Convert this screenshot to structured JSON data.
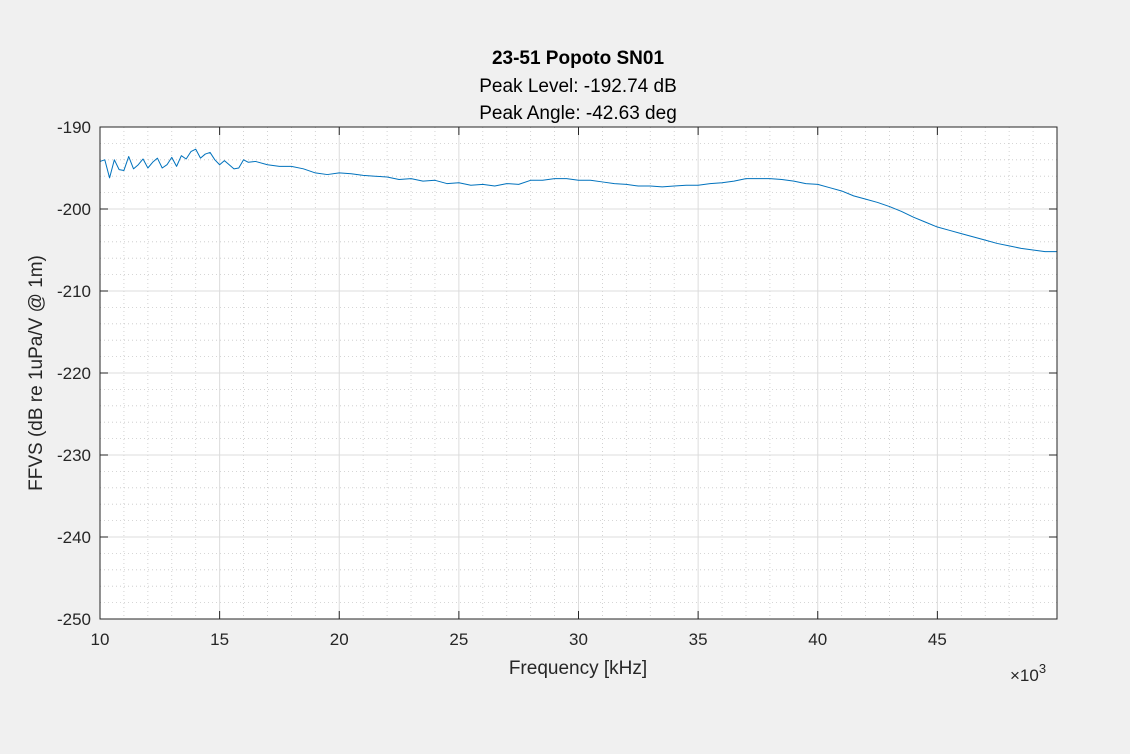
{
  "chart_data": {
    "type": "line",
    "title": "23-51 Popoto SN01",
    "subtitles": [
      "Peak Level: -192.74 dB",
      "Peak Angle: -42.63 deg"
    ],
    "xlabel": "Frequency [kHz]",
    "ylabel": "FFVS (dB re 1uPa/V @ 1m)",
    "x_exponent_label": "×10",
    "x_exponent_power": "3",
    "xlim": [
      10000,
      50000
    ],
    "ylim": [
      -250,
      -190
    ],
    "xticks": [
      10000,
      15000,
      20000,
      25000,
      30000,
      35000,
      40000,
      45000
    ],
    "xtick_labels": [
      "10",
      "15",
      "20",
      "25",
      "30",
      "35",
      "40",
      "45"
    ],
    "yticks": [
      -190,
      -200,
      -210,
      -220,
      -230,
      -240,
      -250
    ],
    "ytick_labels": [
      "-190",
      "-200",
      "-210",
      "-220",
      "-230",
      "-240",
      "-250"
    ],
    "grid": true,
    "minor_grid": true,
    "line_color": "#0072bd",
    "series": [
      {
        "x": [
          10000,
          10200,
          10400,
          10600,
          10800,
          11000,
          11200,
          11400,
          11600,
          11800,
          12000,
          12200,
          12400,
          12600,
          12800,
          13000,
          13200,
          13400,
          13600,
          13800,
          14000,
          14200,
          14400,
          14600,
          14800,
          15000,
          15200,
          15400,
          15600,
          15800,
          16000,
          16200,
          16500,
          17000,
          17500,
          18000,
          18500,
          19000,
          19500,
          20000,
          20500,
          21000,
          21500,
          22000,
          22500,
          23000,
          23500,
          24000,
          24500,
          25000,
          25500,
          26000,
          26500,
          27000,
          27500,
          28000,
          28500,
          29000,
          29500,
          30000,
          30500,
          31000,
          31500,
          32000,
          32500,
          33000,
          33500,
          34000,
          34500,
          35000,
          35500,
          36000,
          36500,
          37000,
          37500,
          38000,
          38500,
          39000,
          39500,
          40000,
          40500,
          41000,
          41500,
          42000,
          42500,
          43000,
          43500,
          44000,
          44500,
          45000,
          45500,
          46000,
          46500,
          47000,
          47500,
          48000,
          48500,
          49000,
          49500,
          50000
        ],
        "y": [
          -194.2,
          -194.0,
          -196.2,
          -194.0,
          -195.2,
          -195.3,
          -193.6,
          -195.1,
          -194.6,
          -193.9,
          -195.0,
          -194.3,
          -193.8,
          -195.0,
          -194.6,
          -193.7,
          -194.8,
          -193.5,
          -193.9,
          -193.0,
          -192.7,
          -193.8,
          -193.3,
          -193.1,
          -194.0,
          -194.6,
          -194.1,
          -194.6,
          -195.1,
          -195.0,
          -194.0,
          -194.3,
          -194.2,
          -194.6,
          -194.8,
          -194.8,
          -195.1,
          -195.6,
          -195.8,
          -195.6,
          -195.7,
          -195.9,
          -196.0,
          -196.1,
          -196.4,
          -196.3,
          -196.6,
          -196.5,
          -196.9,
          -196.8,
          -197.1,
          -197.0,
          -197.2,
          -196.9,
          -197.0,
          -196.5,
          -196.5,
          -196.3,
          -196.3,
          -196.5,
          -196.5,
          -196.7,
          -196.9,
          -197.0,
          -197.2,
          -197.2,
          -197.3,
          -197.2,
          -197.1,
          -197.1,
          -196.9,
          -196.8,
          -196.6,
          -196.3,
          -196.3,
          -196.3,
          -196.4,
          -196.6,
          -196.9,
          -197.0,
          -197.4,
          -197.8,
          -198.4,
          -198.8,
          -199.2,
          -199.7,
          -200.3,
          -201.0,
          -201.6,
          -202.2,
          -202.6,
          -203.0,
          -203.4,
          -203.8,
          -204.2,
          -204.5,
          -204.8,
          -205.0,
          -205.2,
          -205.2
        ]
      }
    ]
  }
}
